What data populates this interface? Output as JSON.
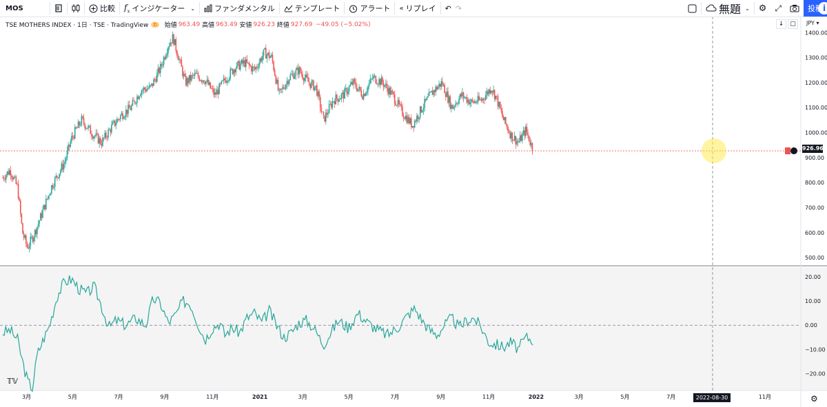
{
  "toolbar": {
    "symbol": "MOS",
    "compare": "比較",
    "indicators": "インジケーター",
    "fundamentals": "ファンダメンタル",
    "templates": "テンプレート",
    "alert": "アラート",
    "replay": "リプレイ",
    "layout_name": "無題",
    "post": "投稿"
  },
  "legend": {
    "name": "TSE MOTHERS INDEX · 1日 · TSE · TradingView",
    "badge": "D",
    "open_label": "始値",
    "open": "963.49",
    "high_label": "高値",
    "high": "963.49",
    "low_label": "安値",
    "low": "926.23",
    "close_label": "終値",
    "close": "927.69",
    "change": "−49.05 (−5.02%)"
  },
  "price_axis": {
    "currency": "JPY",
    "last_price": "926.96"
  },
  "crosshair": {
    "date": "2022-08-30"
  },
  "colors": {
    "up": "#26a69a",
    "down": "#ef5350",
    "oscillator": "#26a69a"
  },
  "chart_data": {
    "type": "candlestick",
    "price_yticks": [
      500,
      600,
      700,
      800,
      900,
      1000,
      1100,
      1200,
      1300,
      1400
    ],
    "price_ytick_labels": [
      "500.00",
      "600.00",
      "700.00",
      "800.00",
      "900.00",
      "1000.00",
      "1100.00",
      "1200.00",
      "1300.00",
      "1400.00"
    ],
    "ylim": [
      470,
      1420
    ],
    "oscillator_yticks": [
      -20,
      -10,
      0,
      10,
      20
    ],
    "oscillator_ytick_labels": [
      "−20.00",
      "−10.00",
      "0.00",
      "10.00",
      "20.00"
    ],
    "oscillator_ylim": [
      -27,
      24
    ],
    "xticks": [
      "3月",
      "5月",
      "7月",
      "9月",
      "11月",
      "2021",
      "3月",
      "5月",
      "7月",
      "9月",
      "11月",
      "2022",
      "3月",
      "5月",
      "7月",
      "9月",
      "11月"
    ],
    "price_path": [
      [
        0,
        820
      ],
      [
        0.03,
        850
      ],
      [
        0.06,
        780
      ],
      [
        0.08,
        600
      ],
      [
        0.1,
        540
      ],
      [
        0.13,
        600
      ],
      [
        0.16,
        680
      ],
      [
        0.2,
        790
      ],
      [
        0.25,
        880
      ],
      [
        0.28,
        980
      ],
      [
        0.32,
        1050
      ],
      [
        0.36,
        1000
      ],
      [
        0.4,
        960
      ],
      [
        0.44,
        1020
      ],
      [
        0.48,
        1070
      ],
      [
        0.52,
        1100
      ],
      [
        0.56,
        1170
      ],
      [
        0.6,
        1180
      ],
      [
        0.64,
        1260
      ],
      [
        0.67,
        1350
      ],
      [
        0.69,
        1380
      ],
      [
        0.71,
        1310
      ],
      [
        0.74,
        1200
      ],
      [
        0.78,
        1230
      ],
      [
        0.82,
        1210
      ],
      [
        0.86,
        1150
      ],
      [
        0.9,
        1210
      ],
      [
        0.94,
        1260
      ],
      [
        0.98,
        1280
      ],
      [
        1.02,
        1250
      ],
      [
        1.06,
        1320
      ],
      [
        1.09,
        1300
      ],
      [
        1.12,
        1150
      ],
      [
        1.16,
        1220
      ],
      [
        1.2,
        1250
      ],
      [
        1.24,
        1200
      ],
      [
        1.27,
        1180
      ],
      [
        1.3,
        1050
      ],
      [
        1.34,
        1130
      ],
      [
        1.38,
        1150
      ],
      [
        1.42,
        1200
      ],
      [
        1.46,
        1150
      ],
      [
        1.5,
        1220
      ],
      [
        1.54,
        1200
      ],
      [
        1.58,
        1150
      ],
      [
        1.62,
        1080
      ],
      [
        1.66,
        1030
      ],
      [
        1.7,
        1100
      ],
      [
        1.74,
        1160
      ],
      [
        1.78,
        1200
      ],
      [
        1.82,
        1100
      ],
      [
        1.86,
        1150
      ],
      [
        1.9,
        1120
      ],
      [
        1.94,
        1130
      ],
      [
        1.98,
        1180
      ],
      [
        2.0,
        1140
      ],
      [
        2.03,
        1050
      ],
      [
        2.06,
        990
      ],
      [
        2.09,
        960
      ],
      [
        2.12,
        1010
      ],
      [
        2.15,
        930
      ]
    ],
    "oscillator_path": [
      [
        0,
        -3
      ],
      [
        0.03,
        -2
      ],
      [
        0.06,
        -6
      ],
      [
        0.08,
        -15
      ],
      [
        0.1,
        -23
      ],
      [
        0.12,
        -26
      ],
      [
        0.14,
        -12
      ],
      [
        0.16,
        -7
      ],
      [
        0.19,
        0
      ],
      [
        0.22,
        12
      ],
      [
        0.25,
        18
      ],
      [
        0.28,
        19
      ],
      [
        0.31,
        15
      ],
      [
        0.34,
        13
      ],
      [
        0.37,
        16
      ],
      [
        0.4,
        8
      ],
      [
        0.43,
        -1
      ],
      [
        0.46,
        2
      ],
      [
        0.5,
        0
      ],
      [
        0.54,
        3
      ],
      [
        0.58,
        0
      ],
      [
        0.61,
        11
      ],
      [
        0.64,
        9
      ],
      [
        0.67,
        1
      ],
      [
        0.7,
        4
      ],
      [
        0.73,
        10
      ],
      [
        0.76,
        9
      ],
      [
        0.79,
        1
      ],
      [
        0.82,
        -6
      ],
      [
        0.85,
        -1
      ],
      [
        0.88,
        1
      ],
      [
        0.9,
        -4
      ],
      [
        0.93,
        -1
      ],
      [
        0.96,
        -3
      ],
      [
        0.99,
        3
      ],
      [
        1.02,
        5
      ],
      [
        1.05,
        1
      ],
      [
        1.08,
        6
      ],
      [
        1.11,
        0
      ],
      [
        1.14,
        -5
      ],
      [
        1.17,
        -3
      ],
      [
        1.2,
        1
      ],
      [
        1.23,
        2
      ],
      [
        1.26,
        -1
      ],
      [
        1.3,
        -8
      ],
      [
        1.33,
        -3
      ],
      [
        1.36,
        2
      ],
      [
        1.4,
        -1
      ],
      [
        1.44,
        5
      ],
      [
        1.48,
        1
      ],
      [
        1.52,
        -2
      ],
      [
        1.56,
        -4
      ],
      [
        1.6,
        -1
      ],
      [
        1.64,
        4
      ],
      [
        1.67,
        7
      ],
      [
        1.7,
        2
      ],
      [
        1.73,
        -2
      ],
      [
        1.76,
        -4
      ],
      [
        1.79,
        0
      ],
      [
        1.82,
        3
      ],
      [
        1.85,
        -1
      ],
      [
        1.88,
        2
      ],
      [
        1.91,
        3
      ],
      [
        1.94,
        -1
      ],
      [
        1.97,
        -7
      ],
      [
        2.0,
        -8
      ],
      [
        2.03,
        -9
      ],
      [
        2.06,
        -7
      ],
      [
        2.09,
        -10
      ],
      [
        2.12,
        -5
      ],
      [
        2.15,
        -6
      ]
    ]
  }
}
